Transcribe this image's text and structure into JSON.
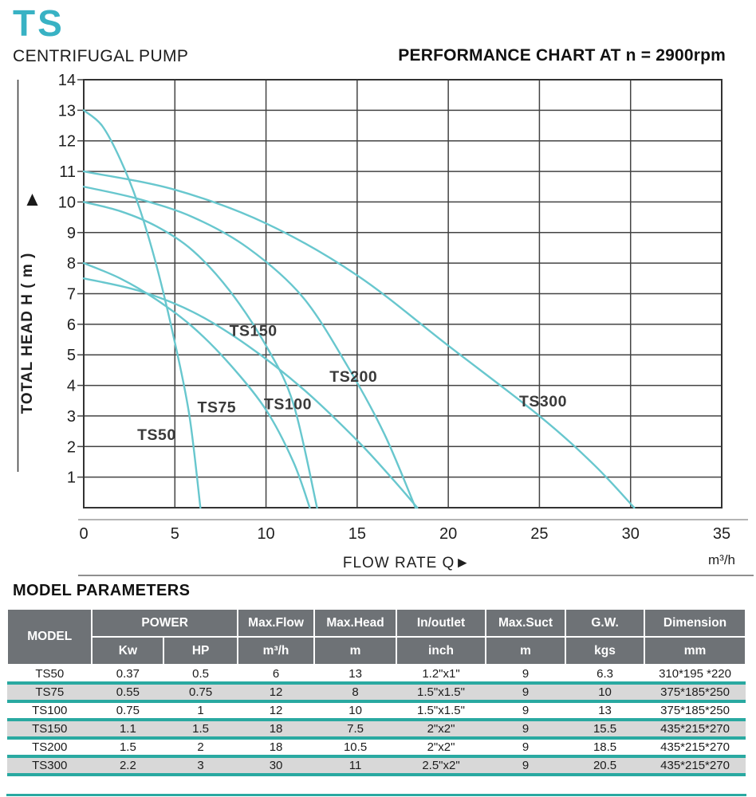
{
  "brand": {
    "logo": "TS",
    "subtitle": "CENTRIFUGAL PUMP"
  },
  "chart_title": "PERFORMANCE CHART AT n = 2900rpm",
  "colors": {
    "logo_teal": "#38b2c4",
    "curve_teal": "#68c7ce",
    "table_teal": "#29a9a1",
    "grid": "#434343",
    "header_gray": "#6e7276",
    "row_gray": "#d8d8d8"
  },
  "chart_data": {
    "type": "line",
    "title": "PERFORMANCE CHART AT n = 2900rpm",
    "xlabel": "FLOW RATE Q►",
    "x_unit": "m³/h",
    "ylabel": "TOTAL HEAD H ( m )",
    "xlim": [
      0,
      35
    ],
    "ylim": [
      0,
      14
    ],
    "x_ticks": [
      0,
      5,
      10,
      15,
      20,
      25,
      30,
      35
    ],
    "y_ticks": [
      1,
      2,
      3,
      4,
      5,
      6,
      7,
      8,
      9,
      10,
      11,
      12,
      13,
      14
    ],
    "grid": true,
    "legend_position": "on-curve",
    "series": [
      {
        "name": "TS50",
        "max_head": 13,
        "max_flow": 6,
        "points": [
          [
            0,
            13
          ],
          [
            1,
            12.5
          ],
          [
            2,
            11.4
          ],
          [
            3,
            9.9
          ],
          [
            4,
            7.9
          ],
          [
            5,
            5.4
          ],
          [
            5.8,
            3.0
          ],
          [
            6.4,
            0
          ]
        ],
        "label_pos": [
          4.0,
          2.4
        ]
      },
      {
        "name": "TS75",
        "max_head": 8,
        "max_flow": 12,
        "points": [
          [
            0,
            8
          ],
          [
            2,
            7.5
          ],
          [
            4,
            6.8
          ],
          [
            6,
            5.9
          ],
          [
            8,
            4.7
          ],
          [
            10,
            3.2
          ],
          [
            11.5,
            1.5
          ],
          [
            12.4,
            0
          ]
        ],
        "label_pos": [
          7.3,
          3.3
        ]
      },
      {
        "name": "TS100",
        "max_head": 10,
        "max_flow": 12,
        "points": [
          [
            0,
            10
          ],
          [
            2,
            9.7
          ],
          [
            4,
            9.2
          ],
          [
            6,
            8.4
          ],
          [
            8,
            7.1
          ],
          [
            10,
            5.3
          ],
          [
            11.5,
            3.4
          ],
          [
            12.8,
            0
          ]
        ],
        "label_pos": [
          11.2,
          3.4
        ]
      },
      {
        "name": "TS150",
        "max_head": 7.5,
        "max_flow": 18,
        "points": [
          [
            0,
            7.5
          ],
          [
            3,
            7.1
          ],
          [
            6,
            6.4
          ],
          [
            9,
            5.3
          ],
          [
            12,
            3.9
          ],
          [
            15,
            2.2
          ],
          [
            17,
            0.9
          ],
          [
            18.3,
            0
          ]
        ],
        "label_pos": [
          9.3,
          5.8
        ]
      },
      {
        "name": "TS200",
        "max_head": 10.5,
        "max_flow": 18,
        "points": [
          [
            0,
            10.5
          ],
          [
            3,
            10.1
          ],
          [
            6,
            9.5
          ],
          [
            9,
            8.5
          ],
          [
            12,
            6.9
          ],
          [
            14.5,
            4.6
          ],
          [
            16.5,
            2.4
          ],
          [
            18.2,
            0
          ]
        ],
        "label_pos": [
          14.8,
          4.3
        ]
      },
      {
        "name": "TS300",
        "max_head": 11,
        "max_flow": 30,
        "points": [
          [
            0,
            11
          ],
          [
            5,
            10.4
          ],
          [
            10,
            9.3
          ],
          [
            15,
            7.6
          ],
          [
            20,
            5.3
          ],
          [
            25,
            3.0
          ],
          [
            28,
            1.4
          ],
          [
            30.2,
            0
          ]
        ],
        "label_pos": [
          25.2,
          3.5
        ]
      }
    ]
  },
  "table": {
    "section_title": "MODEL PARAMETERS",
    "header": {
      "model": "MODEL",
      "power": "POWER",
      "kw": "Kw",
      "hp": "HP",
      "groups": [
        {
          "label": "Max.Flow",
          "unit": "m³/h"
        },
        {
          "label": "Max.Head",
          "unit": "m"
        },
        {
          "label": "In/outlet",
          "unit": "inch"
        },
        {
          "label": "Max.Suct",
          "unit": "m"
        },
        {
          "label": "G.W.",
          "unit": "kgs"
        },
        {
          "label": "Dimension",
          "unit": "mm"
        }
      ]
    },
    "rows": [
      {
        "shaded": false,
        "cells": [
          "TS50",
          "0.37",
          "0.5",
          "6",
          "13",
          "1.2\"x1\"",
          "9",
          "6.3",
          "310*195 *220"
        ]
      },
      {
        "shaded": true,
        "cells": [
          "TS75",
          "0.55",
          "0.75",
          "12",
          "8",
          "1.5\"x1.5\"",
          "9",
          "10",
          "375*185*250"
        ]
      },
      {
        "shaded": false,
        "cells": [
          "TS100",
          "0.75",
          "1",
          "12",
          "10",
          "1.5\"x1.5\"",
          "9",
          "13",
          "375*185*250"
        ]
      },
      {
        "shaded": true,
        "cells": [
          "TS150",
          "1.1",
          "1.5",
          "18",
          "7.5",
          "2\"x2\"",
          "9",
          "15.5",
          "435*215*270"
        ]
      },
      {
        "shaded": false,
        "cells": [
          "TS200",
          "1.5",
          "2",
          "18",
          "10.5",
          "2\"x2\"",
          "9",
          "18.5",
          "435*215*270"
        ]
      },
      {
        "shaded": true,
        "cells": [
          "TS300",
          "2.2",
          "3",
          "30",
          "11",
          "2.5\"x2\"",
          "9",
          "20.5",
          "435*215*270"
        ]
      }
    ]
  }
}
